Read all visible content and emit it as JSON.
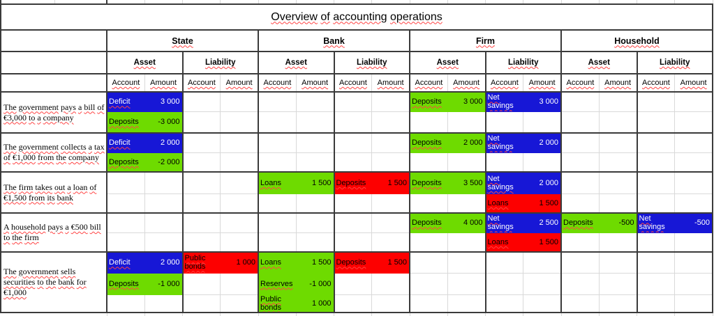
{
  "sheet": {
    "title": "Overview of accounting operations",
    "groups": [
      "State",
      "Bank",
      "Firm",
      "Household"
    ],
    "labels": {
      "asset": "Asset",
      "liability": "Liability",
      "account": "Account",
      "amount": "Amount"
    }
  },
  "colors": {
    "entry_blue": "#1717d6",
    "entry_green": "#6edb00",
    "entry_red": "#fd0000",
    "border_dark": "#3a3a3a",
    "grid_light": "#d9d9d9",
    "spellcheck_wave": "#ff4343"
  },
  "operations": [
    {
      "description": "The government pays a bill of €3,000 to a company",
      "entries": [
        {
          "entity": "State",
          "side": "Asset",
          "account": "Deficit",
          "amount": "3 000"
        },
        {
          "entity": "State",
          "side": "Asset",
          "account": "Deposits",
          "amount": "-3 000"
        },
        {
          "entity": "Firm",
          "side": "Asset",
          "account": "Deposits",
          "amount": "3 000"
        },
        {
          "entity": "Firm",
          "side": "Liability",
          "account": "Net savings",
          "amount": "3 000"
        }
      ]
    },
    {
      "description": "The government collects a tax of €1,000 from the company",
      "entries": [
        {
          "entity": "State",
          "side": "Asset",
          "account": "Deficit",
          "amount": "2 000"
        },
        {
          "entity": "State",
          "side": "Asset",
          "account": "Deposits",
          "amount": "-2 000"
        },
        {
          "entity": "Firm",
          "side": "Asset",
          "account": "Deposits",
          "amount": "2 000"
        },
        {
          "entity": "Firm",
          "side": "Liability",
          "account": "Net savings",
          "amount": "2 000"
        }
      ]
    },
    {
      "description": "The firm takes out a loan of €1,500 from its bank",
      "entries": [
        {
          "entity": "Bank",
          "side": "Asset",
          "account": "Loans",
          "amount": "1 500"
        },
        {
          "entity": "Bank",
          "side": "Liability",
          "account": "Deposits",
          "amount": "1 500"
        },
        {
          "entity": "Firm",
          "side": "Asset",
          "account": "Deposits",
          "amount": "3 500"
        },
        {
          "entity": "Firm",
          "side": "Liability",
          "account": "Net savings",
          "amount": "2 000"
        },
        {
          "entity": "Firm",
          "side": "Liability",
          "account": "Loans",
          "amount": "1 500"
        }
      ]
    },
    {
      "description": "A household pays a €500 bill to the firm",
      "entries": [
        {
          "entity": "Firm",
          "side": "Asset",
          "account": "Deposits",
          "amount": "4 000"
        },
        {
          "entity": "Firm",
          "side": "Liability",
          "account": "Net savings",
          "amount": "2 500"
        },
        {
          "entity": "Firm",
          "side": "Liability",
          "account": "Loans",
          "amount": "1 500"
        },
        {
          "entity": "Household",
          "side": "Asset",
          "account": "Deposits",
          "amount": "-500"
        },
        {
          "entity": "Household",
          "side": "Liability",
          "account": "Net savings",
          "amount": "-500"
        }
      ]
    },
    {
      "description": "The government sells securities to the bank for €1,000",
      "entries": [
        {
          "entity": "State",
          "side": "Asset",
          "account": "Deficit",
          "amount": "2 000"
        },
        {
          "entity": "State",
          "side": "Liability",
          "account": "Public bonds",
          "amount": "1 000"
        },
        {
          "entity": "State",
          "side": "Asset",
          "account": "Deposits",
          "amount": "-1 000"
        },
        {
          "entity": "Bank",
          "side": "Asset",
          "account": "Loans",
          "amount": "1 500"
        },
        {
          "entity": "Bank",
          "side": "Liability",
          "account": "Deposits",
          "amount": "1 500"
        },
        {
          "entity": "Bank",
          "side": "Asset",
          "account": "Reserves",
          "amount": "-1 000"
        },
        {
          "entity": "Bank",
          "side": "Asset",
          "account": "Public bonds",
          "amount": "1 000"
        }
      ]
    }
  ]
}
